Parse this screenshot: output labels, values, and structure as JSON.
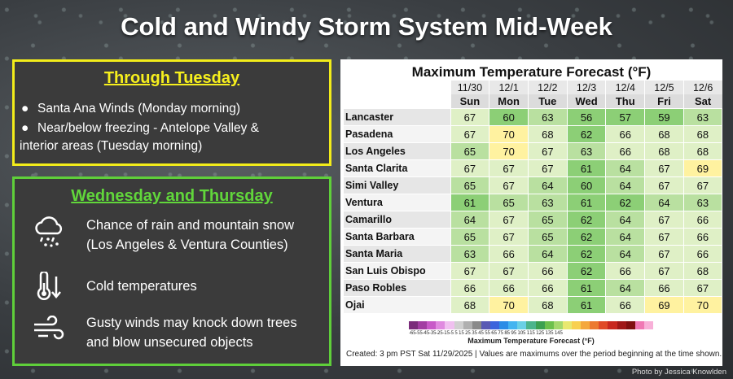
{
  "title": "Cold and Windy Storm System Mid-Week",
  "through_tuesday": {
    "heading": "Through Tuesday",
    "bullets": [
      "Santa Ana Winds (Monday morning)",
      "Near/below freezing - Antelope Valley &",
      "interior areas (Tuesday morning)"
    ],
    "bullet_char": "●"
  },
  "wed_thu": {
    "heading": "Wednesday and Thursday",
    "items": [
      {
        "icon": "rain-snow-cloud-icon",
        "line1": "Chance of rain and mountain snow",
        "line2": "(Los Angeles & Ventura Counties)"
      },
      {
        "icon": "cold-thermometer-icon",
        "line1": "Cold temperatures",
        "line2": ""
      },
      {
        "icon": "wind-icon",
        "line1": "Gusty winds may knock down trees",
        "line2": "and blow unsecured objects"
      }
    ]
  },
  "forecast": {
    "title": "Maximum Temperature Forecast (°F)",
    "dates": [
      "11/30",
      "12/1",
      "12/2",
      "12/3",
      "12/4",
      "12/5",
      "12/6"
    ],
    "days": [
      "Sun",
      "Mon",
      "Tue",
      "Wed",
      "Thu",
      "Fri",
      "Sat"
    ],
    "rows": [
      {
        "city": "Lancaster",
        "temps": [
          67,
          60,
          63,
          56,
          57,
          59,
          63
        ]
      },
      {
        "city": "Pasadena",
        "temps": [
          67,
          70,
          68,
          62,
          66,
          68,
          68
        ]
      },
      {
        "city": "Los Angeles",
        "temps": [
          65,
          70,
          67,
          63,
          66,
          68,
          68
        ]
      },
      {
        "city": "Santa Clarita",
        "temps": [
          67,
          67,
          67,
          61,
          64,
          67,
          69
        ]
      },
      {
        "city": "Simi Valley",
        "temps": [
          65,
          67,
          64,
          60,
          64,
          67,
          67
        ]
      },
      {
        "city": "Ventura",
        "temps": [
          61,
          65,
          63,
          61,
          62,
          64,
          63
        ]
      },
      {
        "city": "Camarillo",
        "temps": [
          64,
          67,
          65,
          62,
          64,
          67,
          66
        ]
      },
      {
        "city": "Santa Barbara",
        "temps": [
          65,
          67,
          65,
          62,
          64,
          67,
          66
        ]
      },
      {
        "city": "Santa Maria",
        "temps": [
          63,
          66,
          64,
          62,
          64,
          67,
          66
        ]
      },
      {
        "city": "San Luis Obispo",
        "temps": [
          67,
          67,
          66,
          62,
          66,
          67,
          68
        ]
      },
      {
        "city": "Paso Robles",
        "temps": [
          66,
          66,
          66,
          61,
          64,
          66,
          67
        ]
      },
      {
        "city": "Ojai",
        "temps": [
          68,
          70,
          68,
          61,
          66,
          69,
          70
        ]
      }
    ],
    "scale_ticks": "-65-55-45-35-25-15-5 5 15 25 35 45 55 65 75 85 95 105 115 125 135 145",
    "scale_label": "Maximum Temperature Forecast (°F)",
    "created": "Created: 3 pm PST Sat 11/29/2025  |  Values are maximums over the period beginning at the time shown.",
    "colors": {
      "cool": "#8ccf76",
      "mid": "#b9e0a0",
      "warm": "#dff0c6",
      "hot": "#fff2a0"
    }
  },
  "credit": "Photo by Jessica Knowlden",
  "accent": {
    "yellow": "#f2ec1a",
    "green": "#5fcf3a"
  }
}
